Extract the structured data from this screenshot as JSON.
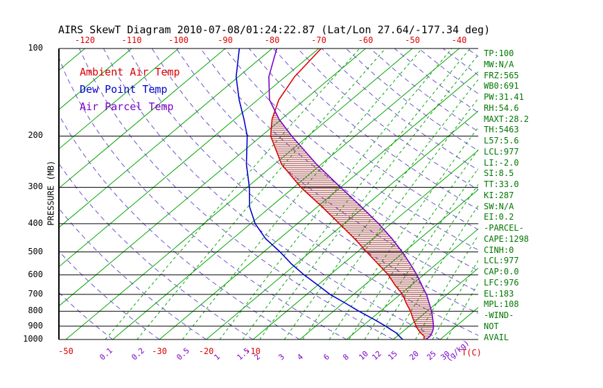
{
  "title": "AIRS SkewT Diagram 2010-07-08/01:24:22.87 (Lat/Lon 27.64/-177.34 deg)",
  "axes": {
    "pressure_label": "PRESSURE (MB)",
    "pressure_ticks": [
      {
        "label": "100",
        "value": 100
      },
      {
        "label": "200",
        "value": 200
      },
      {
        "label": "300",
        "value": 300
      },
      {
        "label": "400",
        "value": 400
      },
      {
        "label": "500",
        "value": 500
      },
      {
        "label": "600",
        "value": 600
      },
      {
        "label": "700",
        "value": 700
      },
      {
        "label": "800",
        "value": 800
      },
      {
        "label": "900",
        "value": 900
      },
      {
        "label": "1000",
        "value": 1000
      }
    ],
    "top_temp_ticks": [
      {
        "label": "-120",
        "value": -120
      },
      {
        "label": "-110",
        "value": -110
      },
      {
        "label": "-100",
        "value": -100
      },
      {
        "label": "-90",
        "value": -90
      },
      {
        "label": "-80",
        "value": -80
      },
      {
        "label": "-70",
        "value": -70
      },
      {
        "label": "-60",
        "value": -60
      },
      {
        "label": "-50",
        "value": -50
      },
      {
        "label": "-40",
        "value": -40
      }
    ],
    "bottom_temp_ticks": [
      {
        "label": "-50",
        "value": -50
      },
      {
        "label": "-30",
        "value": -30
      },
      {
        "label": "-20",
        "value": -20
      },
      {
        "label": "-10",
        "value": -10
      }
    ],
    "temp_unit_label": "T(C)",
    "mixing_ratio_ticks": [
      {
        "label": "0.1",
        "value": 0.1
      },
      {
        "label": "0.2",
        "value": 0.2
      },
      {
        "label": "0.5",
        "value": 0.5
      },
      {
        "label": "1",
        "value": 1
      },
      {
        "label": "1.5",
        "value": 1.5
      },
      {
        "label": "2",
        "value": 2
      },
      {
        "label": "3",
        "value": 3
      },
      {
        "label": "4",
        "value": 4
      },
      {
        "label": "6",
        "value": 6
      },
      {
        "label": "8",
        "value": 8
      },
      {
        "label": "10",
        "value": 10
      },
      {
        "label": "12",
        "value": 12
      },
      {
        "label": "15",
        "value": 15
      },
      {
        "label": "20",
        "value": 20
      },
      {
        "label": "25",
        "value": 25
      },
      {
        "label": "30",
        "value": 30
      }
    ],
    "mixing_ratio_unit_label": "(g/kg)"
  },
  "legend": [
    {
      "label": "Ambient Air Temp",
      "color": "#dd0000"
    },
    {
      "label": "Dew Point Temp",
      "color": "#0000cc"
    },
    {
      "label": "Air Parcel Temp",
      "color": "#7a00c8"
    }
  ],
  "stats": [
    "TP:100",
    "MW:N/A",
    "FRZ:565",
    "WB0:691",
    "PW:31.41",
    "RH:54.6",
    "MAXT:28.2",
    "TH:5463",
    "L57:5.6",
    "LCL:977",
    "LI:-2.0",
    "SI:8.5",
    "TT:33.0",
    "KI:287",
    "SW:N/A",
    "EI:0.2",
    "-PARCEL-",
    "CAPE:1298",
    "CINH:0",
    "LCL:977",
    "CAP:0.0",
    "LFC:976",
    "EL:183",
    "MPL:108",
    "-WIND-",
    "NOT",
    "AVAIL"
  ],
  "colors": {
    "background": "#ffffff",
    "axis_black": "#000000",
    "isotherm_green": "#00a600",
    "adiabat_purple": "#6b52c8",
    "temp_red": "#dd0000",
    "dew_blue": "#0000cc",
    "parcel_purple": "#7a00c8",
    "hatch": "#993333",
    "stats_green": "#007700"
  },
  "chart_data": {
    "type": "line",
    "title": "AIRS SkewT Diagram",
    "xlabel": "T(C) (skewed temperature axis)",
    "ylabel": "PRESSURE (MB)",
    "y_scale": "log",
    "ylim": [
      100,
      1000
    ],
    "top_axis_range_c": [
      -120,
      -40
    ],
    "bottom_axis_range_c": [
      -50,
      39
    ],
    "grid": true,
    "legend_position": "upper-left-inside",
    "pressure_levels_mb": [
      1000,
      975,
      950,
      925,
      900,
      850,
      800,
      750,
      700,
      650,
      600,
      550,
      500,
      450,
      400,
      350,
      300,
      250,
      200,
      175,
      150,
      125,
      100
    ],
    "series": [
      {
        "name": "Ambient Air Temp",
        "color": "#dd0000",
        "temps_c": [
          26.5,
          25.8,
          24.2,
          22.8,
          21.5,
          19.0,
          16.5,
          13.5,
          10.5,
          6.5,
          2.5,
          -2.5,
          -8.0,
          -14.0,
          -21.0,
          -29.0,
          -38.5,
          -48.5,
          -58.0,
          -62.0,
          -65.5,
          -68.0,
          -69.5
        ]
      },
      {
        "name": "Dew Point Temp",
        "color": "#0000cc",
        "temps_c": [
          22.0,
          20.5,
          19.0,
          17.0,
          15.0,
          10.5,
          5.5,
          0.5,
          -5.0,
          -10.0,
          -15.5,
          -21.0,
          -26.5,
          -33.0,
          -39.0,
          -44.5,
          -49.5,
          -56.0,
          -63.0,
          -68.0,
          -74.0,
          -80.5,
          -87.0
        ]
      },
      {
        "name": "Air Parcel Temp",
        "color": "#7a00c8",
        "temps_c": [
          27.0,
          27.0,
          26.6,
          26.0,
          25.2,
          23.2,
          21.0,
          18.4,
          15.6,
          12.2,
          8.6,
          4.4,
          -0.4,
          -6.0,
          -12.6,
          -20.6,
          -30.0,
          -41.0,
          -53.5,
          -60.5,
          -67.5,
          -73.5,
          -79.0
        ]
      }
    ],
    "isotherms_c": {
      "min": -120,
      "max": 40,
      "step": 10,
      "style": "solid-green"
    },
    "dry_adiabats_c": {
      "min": -40,
      "max": 240,
      "step": 10,
      "style": "dashed-purple"
    },
    "mixing_ratio_lines_gkg": [
      0.1,
      0.2,
      0.5,
      1,
      1.5,
      2,
      3,
      4,
      6,
      8,
      10,
      12,
      15,
      20,
      25,
      30
    ],
    "cape_hatch": "horizontal hatching between ambient and parcel temperature curves where parcel is warmer"
  }
}
